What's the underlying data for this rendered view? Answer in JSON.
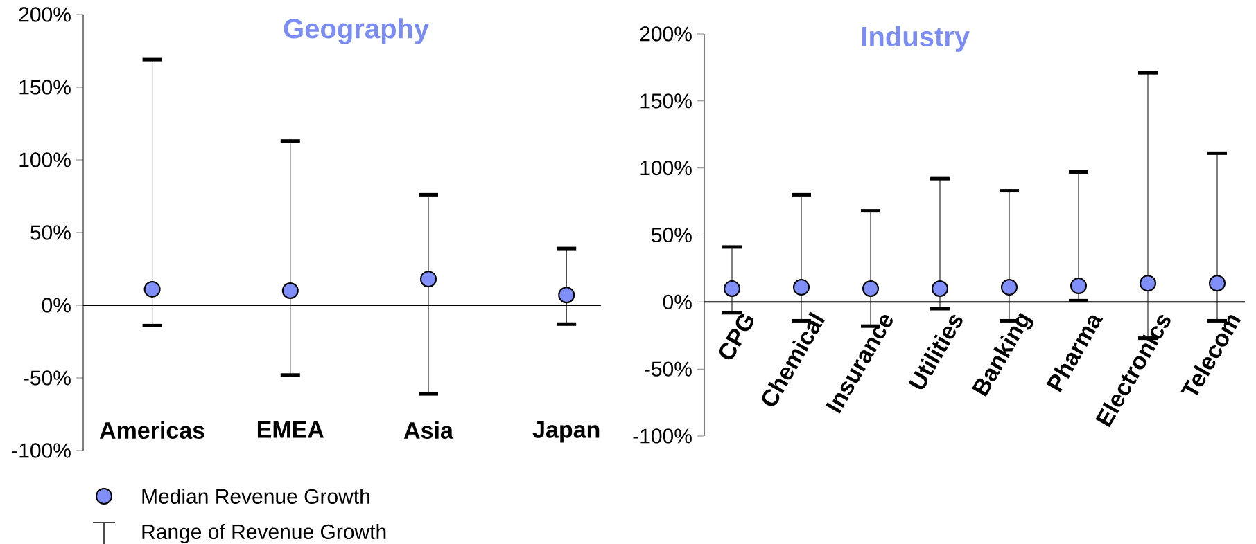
{
  "chart_data": [
    {
      "type": "scatter",
      "title": "Geography",
      "categories": [
        "Americas",
        "EMEA",
        "Asia",
        "Japan"
      ],
      "series": [
        {
          "name": "Median Revenue Growth",
          "color": "#7f8ff7",
          "values": [
            11,
            10,
            18,
            7
          ],
          "errors": [
            [
              -14,
              169
            ],
            [
              -48,
              113
            ],
            [
              -61,
              76
            ],
            [
              -13,
              39
            ]
          ]
        }
      ],
      "ylim": [
        -100,
        200
      ],
      "yticks": [
        {
          "value": -100,
          "label": "-100%"
        },
        {
          "value": -50,
          "label": "-50%"
        },
        {
          "value": 0,
          "label": "0%"
        },
        {
          "value": 50,
          "label": "50%"
        },
        {
          "value": 100,
          "label": "100%"
        },
        {
          "value": 150,
          "label": "150%"
        },
        {
          "value": 200,
          "label": "200%"
        }
      ],
      "marker": "circle",
      "legend": "bottom",
      "annotations": [
        "Range of Revenue Growth"
      ]
    },
    {
      "type": "scatter",
      "title": "Industry",
      "categories": [
        "CPG",
        "Chemical",
        "Insurance",
        "Utilities",
        "Banking",
        "Pharma",
        "Electronics",
        "Telecom"
      ],
      "series": [
        {
          "color": "#7f8ff7",
          "values": [
            10,
            11,
            10,
            10,
            11,
            12,
            14,
            14
          ],
          "errors": [
            [
              -8,
              41
            ],
            [
              -14,
              80
            ],
            [
              -18,
              68
            ],
            [
              -5,
              92
            ],
            [
              -14,
              83
            ],
            [
              1,
              97
            ],
            [
              -27,
              171
            ],
            [
              -14,
              111
            ]
          ]
        }
      ],
      "ylim": [
        -100,
        200
      ],
      "yticks": [
        {
          "value": -100,
          "label": "-100%"
        },
        {
          "value": -50,
          "label": "-50%"
        },
        {
          "value": 0,
          "label": "0%"
        },
        {
          "value": 50,
          "label": "50%"
        },
        {
          "value": 100,
          "label": "100%"
        },
        {
          "value": 150,
          "label": "150%"
        },
        {
          "value": 200,
          "label": "200%"
        }
      ],
      "marker": "circle"
    }
  ]
}
